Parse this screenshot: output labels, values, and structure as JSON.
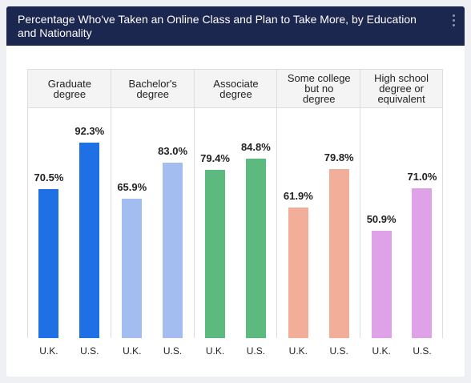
{
  "chart_data": {
    "type": "bar",
    "title": "Percentage Who've Taken an Online Class and Plan to Take More, by Education and Nationality",
    "categories": [
      "Graduate degree",
      "Bachelor's degree",
      "Associate degree",
      "Some college but no degree",
      "High school degree or equivalent"
    ],
    "colors": [
      "#1f6fe5",
      "#a4bdf0",
      "#5dba7e",
      "#f2ae98",
      "#dfa1e7"
    ],
    "series": [
      {
        "name": "U.K.",
        "values": [
          70.5,
          65.9,
          79.4,
          61.9,
          50.9
        ],
        "value_labels": [
          "70.5%",
          "65.9%",
          "79.4%",
          "61.9%",
          "50.9%"
        ]
      },
      {
        "name": "U.S.",
        "values": [
          92.3,
          83.0,
          84.8,
          79.8,
          71.0
        ],
        "value_labels": [
          "92.3%",
          "83.0%",
          "84.8%",
          "79.8%",
          "71.0%"
        ]
      }
    ],
    "ylim": [
      0,
      100
    ]
  }
}
